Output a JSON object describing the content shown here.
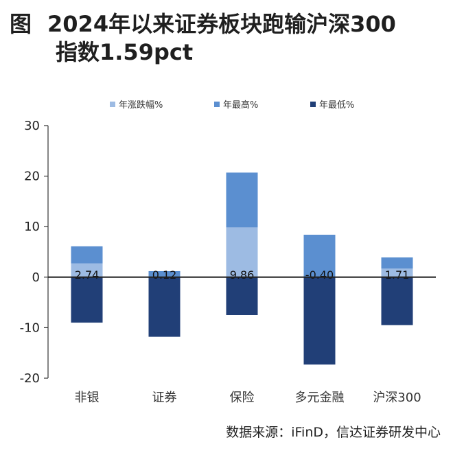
{
  "title": {
    "label": "图",
    "line1": "2024年以来证券板块跑输沪深300",
    "line2": "指数1.59pct"
  },
  "source": "数据来源：iFinD，信达证券研发中心",
  "chart_data": {
    "type": "bar",
    "categories": [
      "非银",
      "证券",
      "保险",
      "多元金融",
      "沪深300"
    ],
    "series": [
      {
        "name": "年涨跌幅%",
        "values": [
          2.74,
          0.12,
          9.86,
          -0.4,
          1.71
        ],
        "color": "#9dbbe3"
      },
      {
        "name": "年最高%",
        "values": [
          6.1,
          1.2,
          20.7,
          8.4,
          3.9
        ],
        "color": "#5b8fd0"
      },
      {
        "name": "年最低%",
        "values": [
          -9.0,
          -11.8,
          -7.5,
          -17.3,
          -9.5
        ],
        "color": "#213f77"
      }
    ],
    "data_labels": [
      "2.74",
      "0.12",
      "9.86",
      "-0.40",
      "1.71"
    ],
    "y_ticks": [
      "30",
      "20",
      "10",
      "0",
      "-10",
      "-20"
    ],
    "ylim": [
      -20,
      30
    ],
    "legend_position": "top",
    "grid": false
  }
}
